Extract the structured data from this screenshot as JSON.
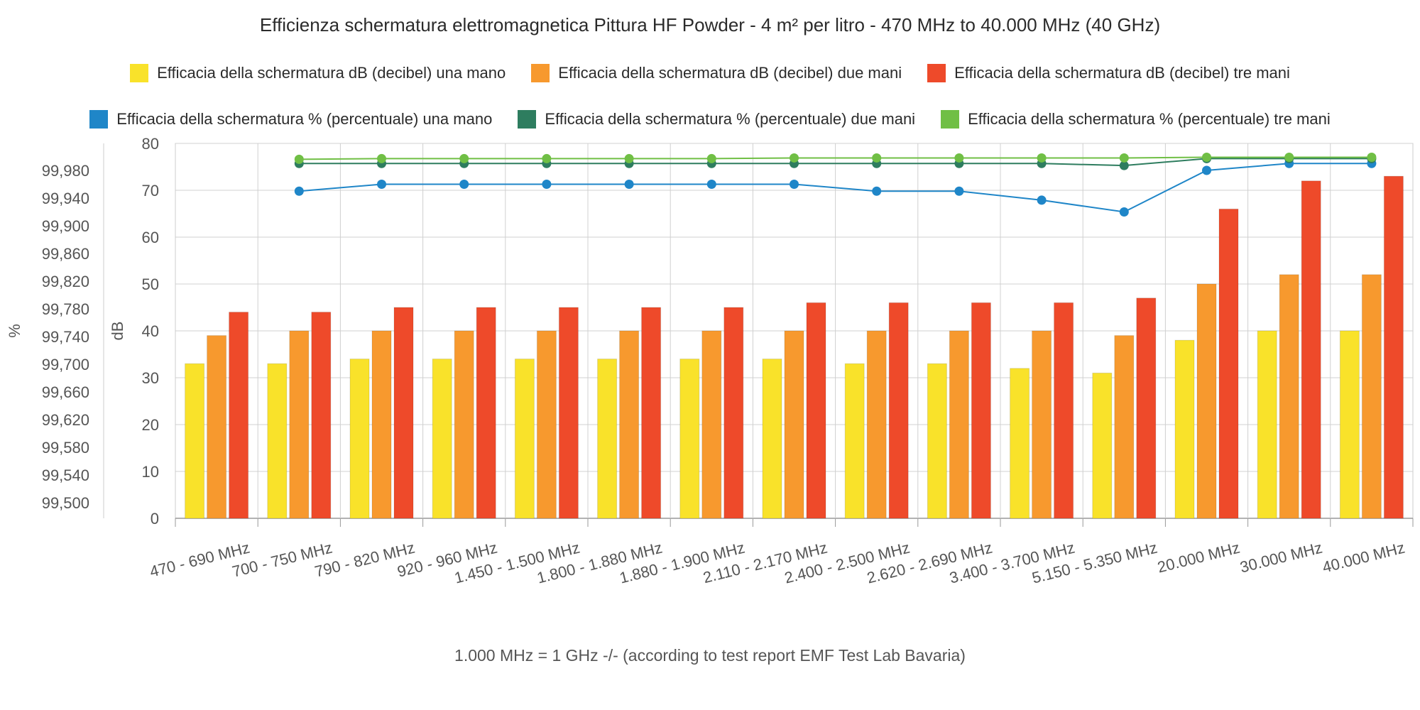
{
  "chart_data": {
    "type": "bar",
    "title": "Efficienza schermatura elettromagnetica Pittura HF Powder - 4 m² per litro - 470 MHz to 40.000 MHz (40 GHz)",
    "categories": [
      "470 - 690 MHz",
      "700 - 750 MHz",
      "790 - 820 MHz",
      "920 - 960 MHz",
      "1.450 - 1.500 MHz",
      "1.800 - 1.880 MHz",
      "1.880 - 1.900 MHz",
      "2.110 - 2.170 MHz",
      "2.400 - 2.500 MHz",
      "2.620 - 2.690 MHz",
      "3.400 - 3.700 MHz",
      "5.150 - 5.350 MHz",
      "20.000 MHz",
      "30.000 MHz",
      "40.000 MHz"
    ],
    "bar_axis": {
      "label": "dB",
      "ylim": [
        0,
        80
      ],
      "ticks": [
        "0",
        "10",
        "20",
        "30",
        "40",
        "50",
        "60",
        "70",
        "80"
      ]
    },
    "line_axis": {
      "label": "%",
      "ticks": [
        "99,500",
        "99,540",
        "99,580",
        "99,620",
        "99,660",
        "99,700",
        "99,740",
        "99,780",
        "99,820",
        "99,860",
        "99,900",
        "99,940",
        "99,980"
      ]
    },
    "series": [
      {
        "name": "Efficacia della schermatura dB (decibel) una mano",
        "type": "bar",
        "color": "#f9e22a",
        "values": [
          33,
          33,
          34,
          34,
          34,
          34,
          34,
          34,
          33,
          33,
          32,
          31,
          38,
          40,
          40
        ]
      },
      {
        "name": "Efficacia della schermatura dB (decibel) due mani",
        "type": "bar",
        "color": "#f7992e",
        "values": [
          39,
          40,
          40,
          40,
          40,
          40,
          40,
          40,
          40,
          40,
          40,
          39,
          50,
          52,
          52
        ]
      },
      {
        "name": "Efficacia della schermatura dB (decibel) tre mani",
        "type": "bar",
        "color": "#ee4a2a",
        "values": [
          44,
          44,
          45,
          45,
          45,
          45,
          45,
          46,
          46,
          46,
          46,
          47,
          66,
          72,
          73
        ]
      },
      {
        "name": "Efficacia della schermatura % (percentuale) una mano",
        "type": "line",
        "color": "#1f86c8",
        "values": [
          null,
          99.95,
          99.96,
          99.96,
          99.96,
          99.96,
          99.96,
          99.96,
          99.95,
          99.95,
          99.937,
          99.92,
          99.98,
          99.99,
          99.99
        ]
      },
      {
        "name": "Efficacia della schermatura % (percentuale) due mani",
        "type": "line",
        "color": "#2e7d5f",
        "values": [
          null,
          99.99,
          99.99,
          99.99,
          99.99,
          99.99,
          99.99,
          99.99,
          99.99,
          99.99,
          99.99,
          99.987,
          99.997,
          99.997,
          99.997
        ]
      },
      {
        "name": "Efficacia della schermatura % (percentuale) tre mani",
        "type": "line",
        "color": "#70bf45",
        "values": [
          null,
          99.996,
          99.997,
          99.997,
          99.997,
          99.997,
          99.997,
          99.998,
          99.998,
          99.998,
          99.998,
          99.998,
          99.999,
          99.999,
          99.999
        ]
      }
    ],
    "legend_position": "top",
    "grid": true,
    "footnote": "1.000 MHz = 1 GHz -/- (according to test report EMF Test Lab Bavaria)"
  }
}
